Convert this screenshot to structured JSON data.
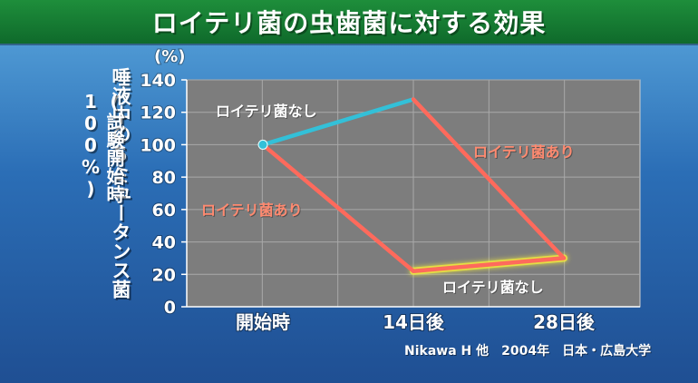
{
  "title": "ロイテリ菌の虫歯菌に対する効果",
  "chart_data": {
    "type": "line",
    "unit": "(%)",
    "ylabel_line1": "唾液中のSミュータンス菌",
    "ylabel_line2": "(試験開始時100%)",
    "categories": [
      "開始時",
      "14日後",
      "28日後"
    ],
    "yticks": [
      0,
      20,
      40,
      60,
      80,
      100,
      120,
      140
    ],
    "ylim": [
      0,
      140
    ],
    "grid": true,
    "series": [
      {
        "name": "ロイテリ菌なし",
        "values": [
          100,
          128,
          null
        ],
        "color": "#33c0d8"
      },
      {
        "name": "ロイテリ菌あり",
        "values": [
          100,
          22,
          30
        ],
        "color": "#ff6a5c"
      }
    ],
    "segment_labels": [
      {
        "text": "ロイテリ菌なし",
        "series": "ロイテリ菌なし",
        "color": "#ffffff"
      },
      {
        "text": "ロイテリ菌あり",
        "series": "ロイテリ菌あり",
        "color": "#ff8a70"
      },
      {
        "text": "ロイテリ菌あり",
        "series": "ロイテリ菌あり",
        "color": "#ff8a70"
      },
      {
        "text": "ロイテリ菌なし",
        "series": "ロイテリ菌なし",
        "color": "#ffffff"
      }
    ],
    "secondary_segment": {
      "from_category": "14日後",
      "from_value": 22,
      "to_category": "28日後",
      "to_value": 30,
      "color": "#33c0d8"
    }
  },
  "credit": "Nikawa H 他　2004年　日本・広島大学"
}
